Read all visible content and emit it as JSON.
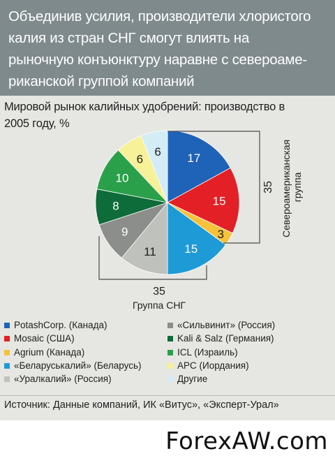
{
  "header": {
    "lines": [
      "Объединив усилия, производители хлористого",
      "калия из стран СНГ смогут влиять на",
      "рыночную конъюнктуру наравне с североаме-",
      "риканской группой компаний"
    ]
  },
  "subtitle": {
    "lines": [
      "Мировой рынок калийных удобрений: производство в",
      "2005 году, %"
    ]
  },
  "chart_data": {
    "type": "pie",
    "title": "Мировой рынок калийных удобрений: производство в 2005 году, %",
    "slices": [
      {
        "label": "PotashCorp. (Канада)",
        "value": 17,
        "color": "#1f63b8"
      },
      {
        "label": "Mosaic (США)",
        "value": 15,
        "color": "#e32026"
      },
      {
        "label": "Agrium (Канада)",
        "value": 3,
        "color": "#f7c23a"
      },
      {
        "label": "«Беларуськалий» (Беларусь)",
        "value": 15,
        "color": "#1e9ad6"
      },
      {
        "label": "«Уралкалий» (Россия)",
        "value": 11,
        "color": "#bfc1bd"
      },
      {
        "label": "«Сильвинит» (Россия)",
        "value": 9,
        "color": "#8b8e8a"
      },
      {
        "label": "Kali & Salz (Германия)",
        "value": 8,
        "color": "#0e6b3a"
      },
      {
        "label": "ICL (Израиль)",
        "value": 10,
        "color": "#2aa04a"
      },
      {
        "label": "APC (Иордания)",
        "value": 6,
        "color": "#f7f19a"
      },
      {
        "label": "Другие",
        "value": 6,
        "color": "#d4ecf5"
      }
    ],
    "groups": [
      {
        "value": "35",
        "label": "Североамериканская группа"
      },
      {
        "value": "35",
        "label": "Группа СНГ"
      }
    ]
  },
  "legend": {
    "left": [
      {
        "label": "PotashCorp. (Канада)",
        "color": "#1f63b8"
      },
      {
        "label": "Mosaic (США)",
        "color": "#e32026"
      },
      {
        "label": "Agrium (Канада)",
        "color": "#f7c23a"
      },
      {
        "label": "«Беларуськалий» (Беларусь)",
        "color": "#1e9ad6"
      },
      {
        "label": "«Уралкалий» (Россия)",
        "color": "#bfc1bd"
      }
    ],
    "right": [
      {
        "label": "«Сильвинит» (Россия)",
        "color": "#8b8e8a"
      },
      {
        "label": "Kali & Salz (Германия)",
        "color": "#0e6b3a"
      },
      {
        "label": "ICL (Израиль)",
        "color": "#2aa04a"
      },
      {
        "label": "APC (Иордания)",
        "color": "#f7f19a"
      },
      {
        "label": "Другие",
        "color": "#d4ecf5"
      }
    ]
  },
  "source": "Источник: Данные компаний, ИК «Витус», «Эксперт-Урал»",
  "watermark": "ForexAW.com"
}
